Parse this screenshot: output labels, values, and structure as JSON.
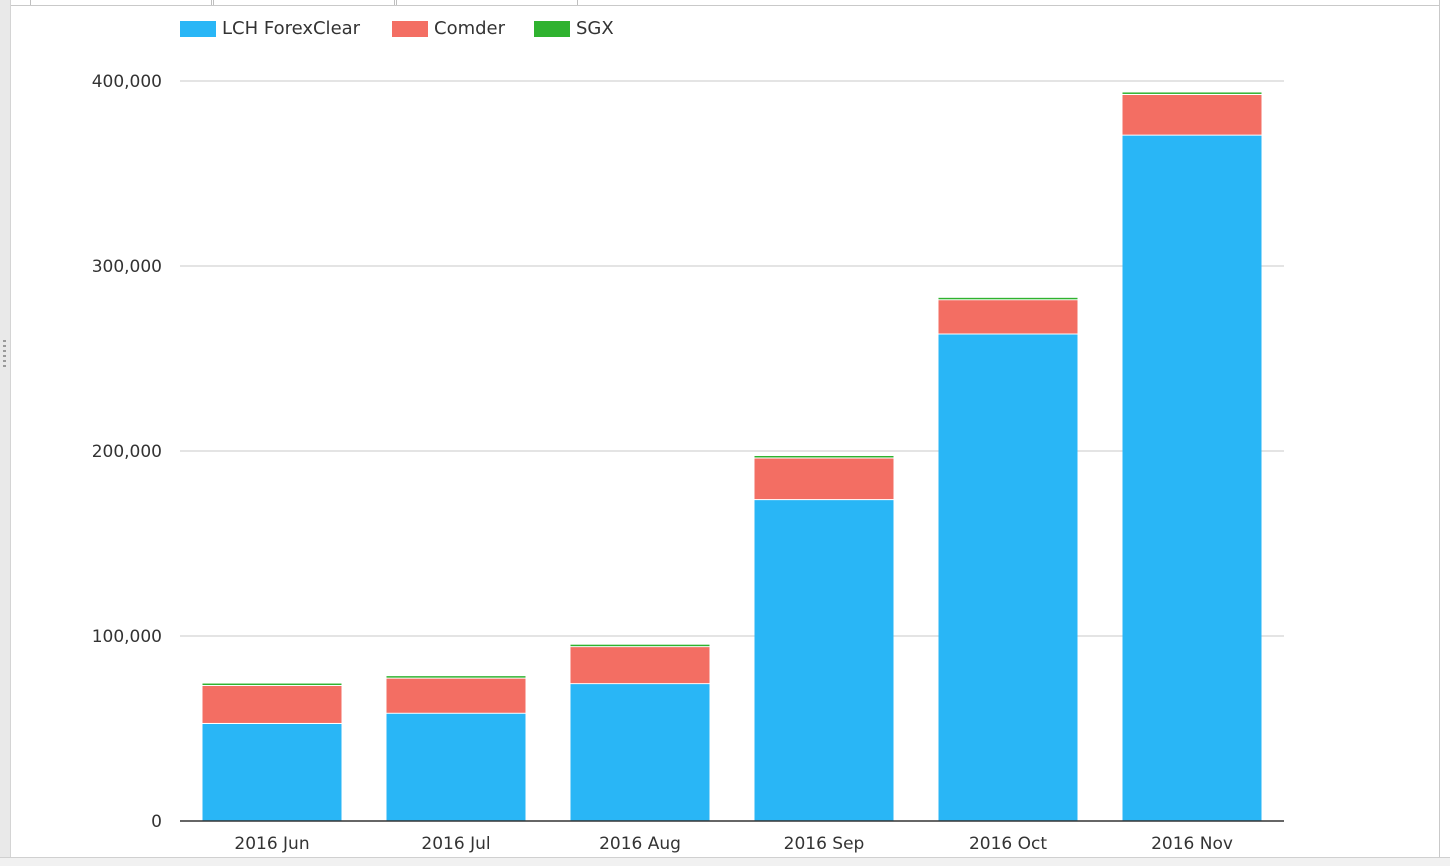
{
  "chart_data": {
    "type": "bar",
    "stacked": true,
    "categories": [
      "2016 Jun",
      "2016 Jul",
      "2016 Aug",
      "2016 Sep",
      "2016 Oct",
      "2016 Nov"
    ],
    "series": [
      {
        "name": "LCH ForexClear",
        "color": "#29b6f6",
        "values": [
          53000,
          58500,
          74500,
          174000,
          263500,
          371000
        ]
      },
      {
        "name": "Comder",
        "color": "#f36e63",
        "values": [
          20500,
          19000,
          20000,
          22500,
          18500,
          22000
        ]
      },
      {
        "name": "SGX",
        "color": "#2fb22f",
        "values": [
          800,
          800,
          800,
          800,
          800,
          800
        ]
      }
    ],
    "yticks": [
      0,
      100000,
      200000,
      300000,
      400000
    ],
    "ytick_labels": [
      "0",
      "100,000",
      "200,000",
      "300,000",
      "400,000"
    ],
    "ylim": [
      0,
      400000
    ],
    "grid": true,
    "legend": "top-left"
  }
}
